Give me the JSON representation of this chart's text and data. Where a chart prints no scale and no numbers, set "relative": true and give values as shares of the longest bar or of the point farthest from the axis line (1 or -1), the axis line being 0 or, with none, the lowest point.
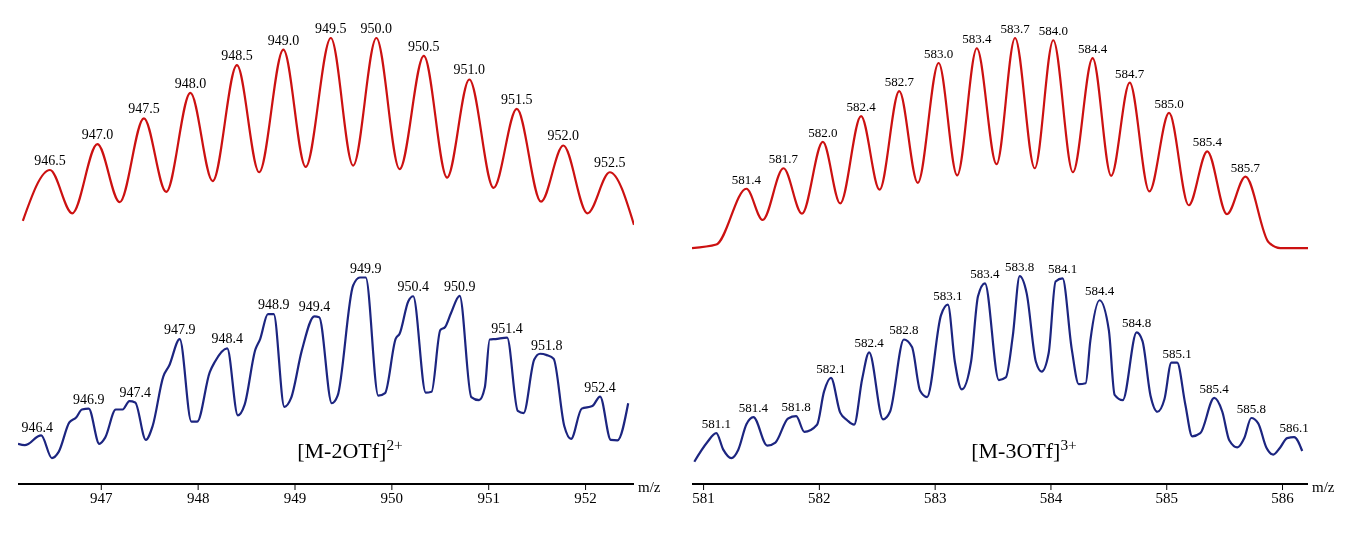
{
  "chart_data": [
    {
      "type": "line",
      "xlabel": "m/z",
      "relative": true,
      "tick_labels": "x",
      "xlim": [
        946.14,
        952.5
      ],
      "xticks": [
        947,
        948,
        949,
        950,
        951,
        952
      ],
      "series": [
        {
          "color": "#cc1111",
          "x": [
            946.19,
            946.47,
            946.7,
            946.96,
            947.19,
            947.44,
            947.67,
            947.92,
            948.15,
            948.4,
            948.63,
            948.88,
            949.11,
            949.37,
            949.6,
            949.84,
            950.08,
            950.33,
            950.57,
            950.8,
            951.05,
            951.29,
            951.54,
            951.77,
            952.02,
            952.25,
            952.5
          ],
          "values": [
            0.59,
            0.704,
            0.607,
            0.762,
            0.632,
            0.82,
            0.655,
            0.877,
            0.679,
            0.939,
            0.699,
            0.974,
            0.711,
            1.0,
            0.714,
            1.0,
            0.706,
            0.96,
            0.687,
            0.907,
            0.664,
            0.841,
            0.633,
            0.759,
            0.607,
            0.699,
            0.581
          ]
        },
        {
          "color": "#1c2580",
          "x": [
            946.14,
            946.21,
            946.25,
            946.34,
            946.38,
            946.49,
            946.56,
            946.67,
            946.74,
            946.8,
            946.87,
            946.98,
            947.04,
            947.15,
            947.22,
            947.29,
            947.35,
            947.46,
            947.53,
            947.64,
            947.7,
            947.81,
            947.93,
            947.99,
            948.12,
            948.17,
            948.3,
            948.41,
            948.48,
            948.59,
            948.64,
            948.72,
            948.78,
            948.89,
            948.96,
            949.07,
            949.2,
            949.25,
            949.38,
            949.44,
            949.6,
            949.67,
            949.73,
            949.86,
            949.93,
            950.04,
            950.08,
            950.17,
            950.22,
            950.35,
            950.41,
            950.5,
            950.55,
            950.61,
            950.7,
            950.82,
            950.9,
            950.96,
            951.01,
            951.07,
            951.19,
            951.3,
            951.36,
            951.47,
            951.53,
            951.6,
            951.67,
            951.78,
            951.85,
            951.96,
            952.07,
            952.15,
            952.26,
            952.33,
            952.44
          ],
          "values": [
            0.09,
            0.087,
            0.09,
            0.106,
            0.109,
            0.058,
            0.072,
            0.138,
            0.149,
            0.167,
            0.169,
            0.09,
            0.104,
            0.167,
            0.167,
            0.186,
            0.183,
            0.099,
            0.13,
            0.241,
            0.265,
            0.325,
            0.14,
            0.14,
            0.251,
            0.273,
            0.304,
            0.154,
            0.178,
            0.301,
            0.325,
            0.381,
            0.381,
            0.173,
            0.193,
            0.299,
            0.376,
            0.374,
            0.181,
            0.198,
            0.445,
            0.463,
            0.463,
            0.198,
            0.204,
            0.326,
            0.337,
            0.41,
            0.421,
            0.205,
            0.207,
            0.345,
            0.352,
            0.383,
            0.422,
            0.195,
            0.188,
            0.217,
            0.324,
            0.325,
            0.328,
            0.164,
            0.159,
            0.279,
            0.292,
            0.289,
            0.281,
            0.13,
            0.101,
            0.169,
            0.175,
            0.196,
            0.099,
            0.098,
            0.181
          ]
        }
      ],
      "annotations": [
        {
          "text": "946.5",
          "x": 946.47,
          "y": 0.704
        },
        {
          "text": "947.0",
          "x": 946.96,
          "y": 0.762
        },
        {
          "text": "947.5",
          "x": 947.44,
          "y": 0.82
        },
        {
          "text": "948.0",
          "x": 947.92,
          "y": 0.877
        },
        {
          "text": "948.5",
          "x": 948.4,
          "y": 0.939
        },
        {
          "text": "949.0",
          "x": 948.88,
          "y": 0.974
        },
        {
          "text": "949.5",
          "x": 949.37,
          "y": 1.0
        },
        {
          "text": "950.0",
          "x": 949.84,
          "y": 1.0
        },
        {
          "text": "950.5",
          "x": 950.33,
          "y": 0.96
        },
        {
          "text": "951.0",
          "x": 950.8,
          "y": 0.907
        },
        {
          "text": "951.5",
          "x": 951.29,
          "y": 0.841
        },
        {
          "text": "952.0",
          "x": 951.77,
          "y": 0.759
        },
        {
          "text": "952.5",
          "x": 952.25,
          "y": 0.699
        },
        {
          "text": "946.4",
          "x": 946.34,
          "y": 0.106
        },
        {
          "text": "946.9",
          "x": 946.87,
          "y": 0.169
        },
        {
          "text": "947.4",
          "x": 947.35,
          "y": 0.183
        },
        {
          "text": "947.9",
          "x": 947.81,
          "y": 0.325
        },
        {
          "text": "948.4",
          "x": 948.3,
          "y": 0.304
        },
        {
          "text": "948.9",
          "x": 948.78,
          "y": 0.381
        },
        {
          "text": "949.4",
          "x": 949.2,
          "y": 0.376
        },
        {
          "text": "949.9",
          "x": 949.73,
          "y": 0.463
        },
        {
          "text": "950.4",
          "x": 950.22,
          "y": 0.421
        },
        {
          "text": "950.9",
          "x": 950.7,
          "y": 0.422
        },
        {
          "text": "951.4",
          "x": 951.19,
          "y": 0.328
        },
        {
          "text": "951.8",
          "x": 951.6,
          "y": 0.289
        },
        {
          "text": "952.4",
          "x": 952.15,
          "y": 0.196
        },
        "[M-2OTf]$^{2+}$"
      ]
    },
    {
      "type": "line",
      "xlabel": "m/z",
      "relative": true,
      "tick_labels": "x",
      "xlim": [
        580.9,
        586.22
      ],
      "xticks": [
        581,
        582,
        583,
        584,
        585,
        586
      ],
      "series": [
        {
          "color": "#cc1111",
          "x": [
            580.9,
            581.11,
            581.37,
            581.51,
            581.69,
            581.85,
            582.03,
            582.18,
            582.36,
            582.52,
            582.69,
            582.85,
            583.03,
            583.19,
            583.36,
            583.53,
            583.69,
            583.86,
            584.02,
            584.19,
            584.36,
            584.52,
            584.68,
            584.85,
            585.02,
            585.19,
            585.35,
            585.52,
            585.68,
            585.88,
            585.98,
            586.22
          ],
          "values": [
            0.529,
            0.537,
            0.662,
            0.592,
            0.708,
            0.606,
            0.767,
            0.629,
            0.825,
            0.66,
            0.881,
            0.675,
            0.944,
            0.692,
            0.977,
            0.717,
            1.0,
            0.708,
            0.995,
            0.699,
            0.955,
            0.691,
            0.9,
            0.656,
            0.832,
            0.625,
            0.746,
            0.605,
            0.689,
            0.542,
            0.529,
            0.529
          ]
        },
        {
          "color": "#1c2580",
          "x": [
            580.92,
            581.03,
            581.11,
            581.17,
            581.24,
            581.3,
            581.37,
            581.43,
            581.55,
            581.62,
            581.73,
            581.8,
            581.87,
            581.98,
            582.04,
            582.1,
            582.18,
            582.24,
            582.3,
            582.37,
            582.43,
            582.55,
            582.61,
            582.73,
            582.8,
            582.87,
            582.93,
            583.05,
            583.11,
            583.17,
            583.23,
            583.31,
            583.37,
            583.43,
            583.55,
            583.61,
            583.67,
            583.73,
            583.79,
            583.87,
            583.92,
            583.98,
            584.04,
            584.1,
            584.18,
            584.24,
            584.3,
            584.34,
            584.42,
            584.5,
            584.55,
            584.62,
            584.74,
            584.79,
            584.86,
            584.92,
            584.98,
            585.04,
            585.09,
            585.16,
            585.22,
            585.29,
            585.41,
            585.48,
            585.54,
            585.61,
            585.67,
            585.73,
            585.79,
            585.86,
            585.92,
            585.98,
            586.04,
            586.1,
            586.17
          ],
          "values": [
            0.05,
            0.093,
            0.114,
            0.077,
            0.058,
            0.077,
            0.134,
            0.15,
            0.086,
            0.093,
            0.147,
            0.152,
            0.117,
            0.133,
            0.207,
            0.238,
            0.16,
            0.143,
            0.133,
            0.236,
            0.295,
            0.145,
            0.162,
            0.324,
            0.307,
            0.209,
            0.195,
            0.378,
            0.402,
            0.274,
            0.212,
            0.274,
            0.421,
            0.45,
            0.233,
            0.239,
            0.331,
            0.466,
            0.428,
            0.274,
            0.252,
            0.293,
            0.454,
            0.461,
            0.302,
            0.224,
            0.226,
            0.321,
            0.412,
            0.345,
            0.2,
            0.188,
            0.34,
            0.321,
            0.198,
            0.162,
            0.19,
            0.272,
            0.272,
            0.179,
            0.107,
            0.114,
            0.193,
            0.162,
            0.098,
            0.082,
            0.103,
            0.148,
            0.136,
            0.082,
            0.066,
            0.082,
            0.103,
            0.105,
            0.074
          ]
        }
      ],
      "annotations": [
        {
          "text": "581.4",
          "x": 581.37,
          "y": 0.662
        },
        {
          "text": "581.7",
          "x": 581.69,
          "y": 0.708
        },
        {
          "text": "582.0",
          "x": 582.03,
          "y": 0.767
        },
        {
          "text": "582.4",
          "x": 582.36,
          "y": 0.825
        },
        {
          "text": "582.7",
          "x": 582.69,
          "y": 0.881
        },
        {
          "text": "583.0",
          "x": 583.03,
          "y": 0.944
        },
        {
          "text": "583.4",
          "x": 583.36,
          "y": 0.977
        },
        {
          "text": "583.7",
          "x": 583.69,
          "y": 1.0
        },
        {
          "text": "584.0",
          "x": 584.02,
          "y": 0.995
        },
        {
          "text": "584.4",
          "x": 584.36,
          "y": 0.955
        },
        {
          "text": "584.7",
          "x": 584.68,
          "y": 0.9
        },
        {
          "text": "585.0",
          "x": 585.02,
          "y": 0.832
        },
        {
          "text": "585.4",
          "x": 585.35,
          "y": 0.746
        },
        {
          "text": "585.7",
          "x": 585.68,
          "y": 0.689
        },
        {
          "text": "581.1",
          "x": 581.11,
          "y": 0.114
        },
        {
          "text": "581.4",
          "x": 581.43,
          "y": 0.15
        },
        {
          "text": "581.8",
          "x": 581.8,
          "y": 0.152
        },
        {
          "text": "582.1",
          "x": 582.1,
          "y": 0.238
        },
        {
          "text": "582.4",
          "x": 582.43,
          "y": 0.295
        },
        {
          "text": "582.8",
          "x": 582.73,
          "y": 0.324
        },
        {
          "text": "583.1",
          "x": 583.11,
          "y": 0.402
        },
        {
          "text": "583.4",
          "x": 583.43,
          "y": 0.45
        },
        {
          "text": "583.8",
          "x": 583.73,
          "y": 0.466
        },
        {
          "text": "584.1",
          "x": 584.1,
          "y": 0.461
        },
        {
          "text": "584.4",
          "x": 584.42,
          "y": 0.412
        },
        {
          "text": "584.8",
          "x": 584.74,
          "y": 0.34
        },
        {
          "text": "585.1",
          "x": 585.09,
          "y": 0.272
        },
        {
          "text": "585.4",
          "x": 585.41,
          "y": 0.193
        },
        {
          "text": "585.8",
          "x": 585.73,
          "y": 0.148
        },
        {
          "text": "586.1",
          "x": 586.1,
          "y": 0.105
        },
        "[M-3OTf]$^{3+}$"
      ]
    }
  ]
}
